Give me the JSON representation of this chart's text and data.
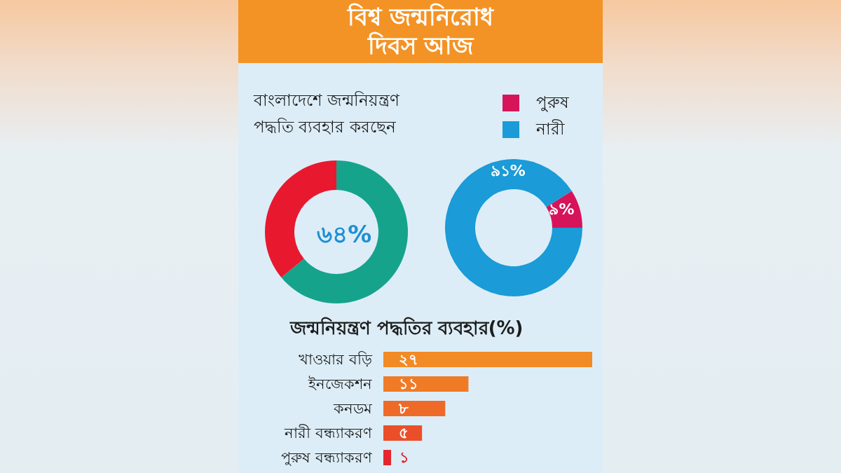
{
  "chart_data": [
    {
      "type": "donut",
      "title": "বিশ্ব জন্মনিরোধ\nদিবস আজ",
      "subtitle": "বাংলাদেশে জন্মনিয়ন্ত্রণ\nপদ্ধতি ব্যবহার করছেন",
      "categories": [
        null,
        null
      ],
      "values": [
        64,
        36
      ],
      "colors": [
        "#16a38c",
        "#e8182f"
      ],
      "value_labels": [
        "৬৪%",
        null
      ]
    },
    {
      "type": "donut",
      "categories": [
        "পুরুষ",
        "নারী"
      ],
      "values": [
        9,
        91
      ],
      "colors": [
        "#d6145a",
        "#1b9bd7"
      ],
      "value_labels": [
        "৯%",
        "৯১%"
      ],
      "legend": "top right"
    },
    {
      "type": "bar",
      "orientation": "horizontal",
      "title": "জন্মনিয়ন্ত্রণ পদ্ধতির ব্যবহার(%)",
      "categories": [
        "খাওয়ার বড়ি",
        "ইনজেকশন",
        "কনডম",
        "নারী বন্ধ্যাকরণ",
        "পুরুষ বন্ধ্যাকরণ"
      ],
      "values": [
        27,
        11,
        8,
        5,
        1
      ],
      "colors": [
        "#f28a26",
        "#f07b27",
        "#ee6a29",
        "#ea4f2a",
        "#e4262e"
      ],
      "value_labels": [
        "২৭",
        "১১",
        "৮",
        "৫",
        "১"
      ]
    }
  ]
}
